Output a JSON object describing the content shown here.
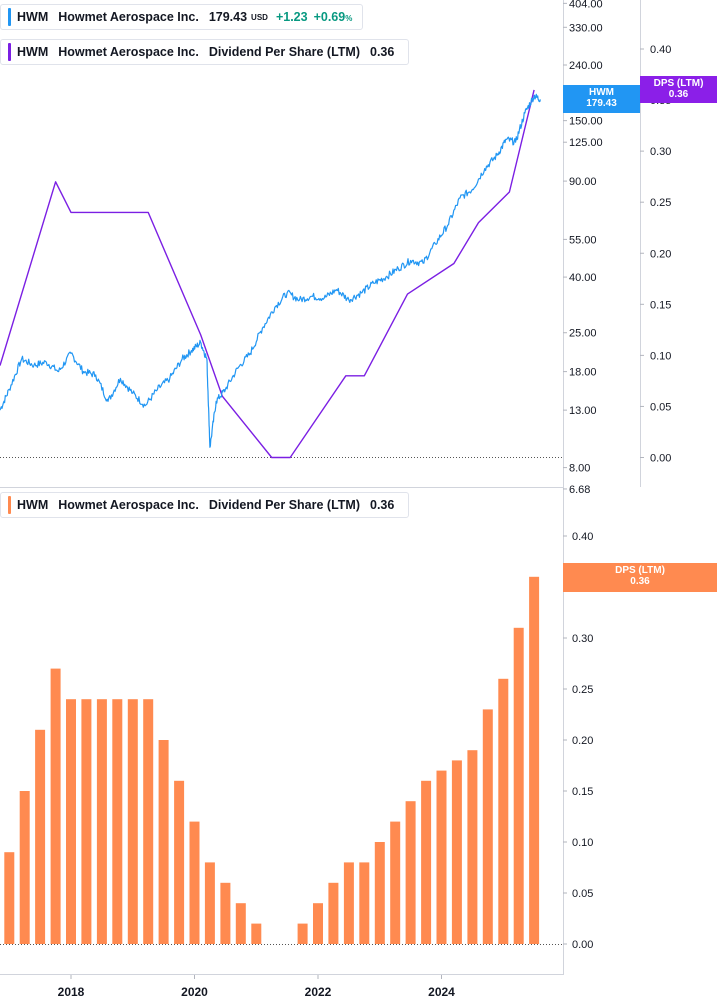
{
  "legends": {
    "price": {
      "symbol": "HWM",
      "name": "Howmet Aerospace Inc.",
      "value": "179.43",
      "currency": "USD",
      "change": "+1.23",
      "change_pct": "+0.69",
      "pct_sign": "%",
      "color": "#2196f3"
    },
    "dps_top": {
      "symbol": "HWM",
      "name": "Howmet Aerospace Inc.",
      "indicator": "Dividend Per Share (LTM)",
      "value": "0.36",
      "color": "#7b1fe3"
    },
    "dps_bottom": {
      "symbol": "HWM",
      "name": "Howmet Aerospace Inc.",
      "indicator": "Dividend Per Share (LTM)",
      "value": "0.36",
      "color": "#ff8a50"
    }
  },
  "tags": {
    "hwm": {
      "line1": "HWM",
      "line2": "179.43",
      "color": "#2196f3"
    },
    "dps_top": {
      "line1": "DPS (LTM)",
      "line2": "0.36",
      "color": "#8b1fe8"
    },
    "dps_bottom": {
      "line1": "DPS (LTM)",
      "line2": "0.36",
      "color": "#ff8a50"
    }
  },
  "chart_data": [
    {
      "type": "line",
      "panel": "top",
      "series": [
        {
          "name": "HWM",
          "scale": "log",
          "color": "#2196f3",
          "x": [
            2016.85,
            2017.0,
            2017.2,
            2017.4,
            2017.6,
            2017.8,
            2018.0,
            2018.2,
            2018.4,
            2018.6,
            2018.8,
            2019.0,
            2019.2,
            2019.4,
            2019.6,
            2019.8,
            2019.95,
            2020.1,
            2020.2,
            2020.25,
            2020.35,
            2020.5,
            2020.7,
            2020.9,
            2021.1,
            2021.3,
            2021.5,
            2021.7,
            2021.9,
            2022.1,
            2022.3,
            2022.5,
            2022.7,
            2022.9,
            2023.1,
            2023.3,
            2023.5,
            2023.7,
            2023.9,
            2024.1,
            2024.3,
            2024.5,
            2024.7,
            2024.9,
            2025.05,
            2025.2,
            2025.35,
            2025.5,
            2025.6
          ],
          "y": [
            13.0,
            15.5,
            20.0,
            19.0,
            19.5,
            18.0,
            21.0,
            18.0,
            17.5,
            14.0,
            17.0,
            15.0,
            13.5,
            15.5,
            17.0,
            20.0,
            21.5,
            23.0,
            20.0,
            9.5,
            14.0,
            15.5,
            18.5,
            21.0,
            26.0,
            31.0,
            35.0,
            33.0,
            34.0,
            33.5,
            36.0,
            33.0,
            35.0,
            38.0,
            40.0,
            43.0,
            46.0,
            45.0,
            53.0,
            62.0,
            78.0,
            84.0,
            100.0,
            112.0,
            128.0,
            125.0,
            160.0,
            185.0,
            179.43
          ]
        },
        {
          "name": "DPS (LTM)",
          "color": "#7b1fe3",
          "x": [
            2016.85,
            2017.75,
            2018.0,
            2019.25,
            2020.1,
            2020.45,
            2021.25,
            2021.55,
            2022.45,
            2022.75,
            2023.45,
            2024.2,
            2024.6,
            2025.1,
            2025.5
          ],
          "y": [
            0.09,
            0.27,
            0.24,
            0.24,
            0.12,
            0.06,
            0.0,
            0.0,
            0.08,
            0.08,
            0.16,
            0.19,
            0.23,
            0.26,
            0.36
          ]
        }
      ],
      "ylabels_left": [
        "404.00",
        "330.00",
        "240.00",
        "150.00",
        "125.00",
        "90.00",
        "55.00",
        "40.00",
        "25.00",
        "18.00",
        "13.00",
        "8.00",
        "6.68"
      ],
      "ylabels_right": [
        "0.40",
        "0.35",
        "0.30",
        "0.25",
        "0.20",
        "0.15",
        "0.10",
        "0.05",
        "0.00"
      ]
    },
    {
      "type": "bar",
      "panel": "bottom",
      "series": [
        {
          "name": "DPS (LTM)",
          "color": "#ff8a50",
          "x": [
            2017.0,
            2017.25,
            2017.5,
            2017.75,
            2018.0,
            2018.25,
            2018.5,
            2018.75,
            2019.0,
            2019.25,
            2019.5,
            2019.75,
            2020.0,
            2020.25,
            2020.5,
            2020.75,
            2021.0,
            2021.25,
            2021.5,
            2021.75,
            2022.0,
            2022.25,
            2022.5,
            2022.75,
            2023.0,
            2023.25,
            2023.5,
            2023.75,
            2024.0,
            2024.25,
            2024.5,
            2024.75,
            2025.0,
            2025.25,
            2025.5
          ],
          "values": [
            0.09,
            0.15,
            0.21,
            0.27,
            0.24,
            0.24,
            0.24,
            0.24,
            0.24,
            0.24,
            0.2,
            0.16,
            0.12,
            0.08,
            0.06,
            0.04,
            0.02,
            0.0,
            0.0,
            0.02,
            0.04,
            0.06,
            0.08,
            0.08,
            0.1,
            0.12,
            0.14,
            0.16,
            0.17,
            0.18,
            0.19,
            0.23,
            0.26,
            0.31,
            0.36
          ]
        }
      ],
      "ylabels": [
        "0.40",
        "0.35",
        "0.30",
        "0.25",
        "0.20",
        "0.15",
        "0.10",
        "0.05",
        "0.00"
      ],
      "xlabels": [
        "2018",
        "2020",
        "2022",
        "2024"
      ]
    }
  ]
}
